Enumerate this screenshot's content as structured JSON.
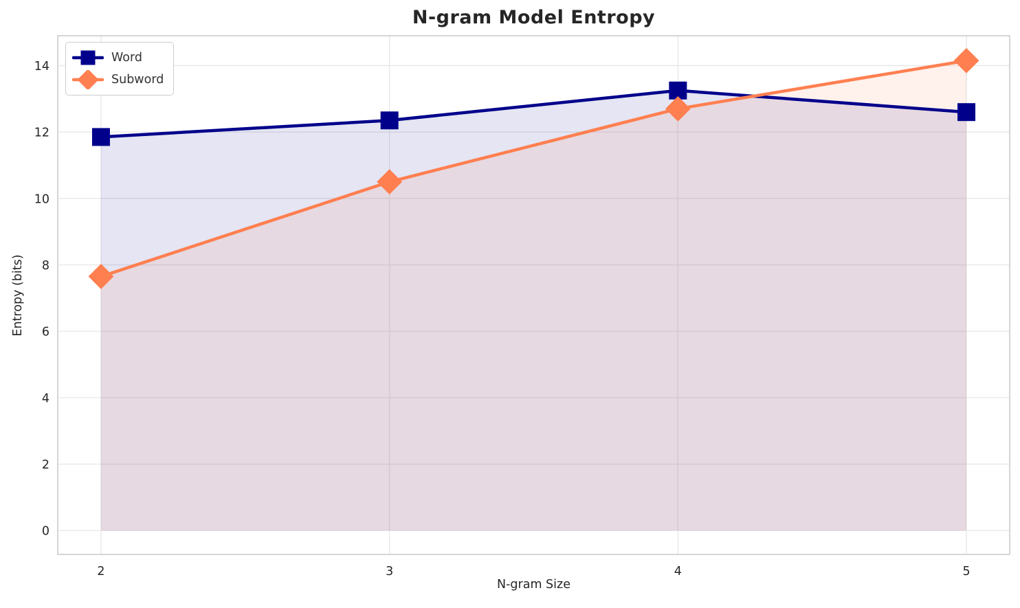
{
  "title": "N-gram Model Entropy",
  "chart_data": {
    "type": "line",
    "title": "N-gram Model Entropy",
    "xlabel": "N-gram Size",
    "ylabel": "Entropy (bits)",
    "x": [
      2,
      3,
      4,
      5
    ],
    "series": [
      {
        "name": "Word",
        "values": [
          11.85,
          12.35,
          13.25,
          12.6
        ],
        "color": "#00008B",
        "marker": "square",
        "fill_alpha": 0.1
      },
      {
        "name": "Subword",
        "values": [
          7.65,
          10.5,
          12.7,
          14.15
        ],
        "color": "#FF7F50",
        "marker": "diamond",
        "fill_alpha": 0.11
      }
    ],
    "x_ticks": [
      "2",
      "3",
      "4",
      "5"
    ],
    "x_tick_values": [
      2,
      3,
      4,
      5
    ],
    "y_ticks": [
      "0",
      "2",
      "4",
      "6",
      "8",
      "10",
      "12",
      "14"
    ],
    "y_tick_values": [
      0,
      2,
      4,
      6,
      8,
      10,
      12,
      14
    ],
    "xlim": [
      1.85,
      5.15
    ],
    "ylim": [
      -0.72,
      14.9
    ],
    "grid": true,
    "area_fill_to_zero": true,
    "legend_position": "upper left",
    "colors": {
      "grid": "#E8E8E8",
      "spine": "#CCCCCC",
      "text": "#262626",
      "legend_text": "#333333"
    }
  }
}
